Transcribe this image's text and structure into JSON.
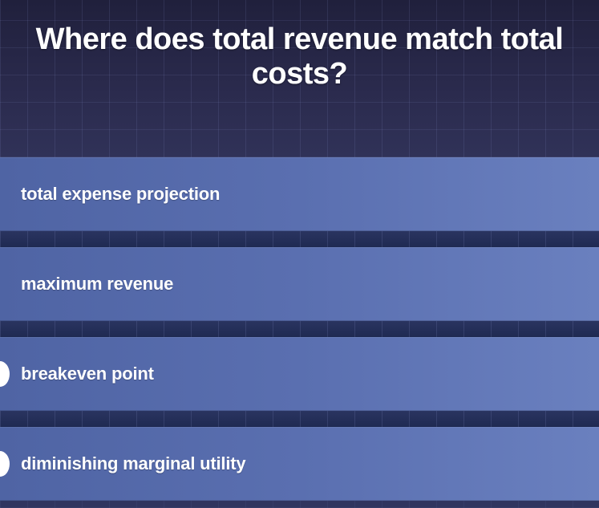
{
  "question": {
    "text": "Where does total revenue match total costs?"
  },
  "answers": [
    {
      "label": "total expense projection"
    },
    {
      "label": "maximum revenue"
    },
    {
      "label": "breakeven point"
    },
    {
      "label": "diminishing marginal utility"
    }
  ],
  "colors": {
    "background_top": "#262647",
    "option_fill": "#5a6fb0",
    "text": "#ffffff"
  }
}
